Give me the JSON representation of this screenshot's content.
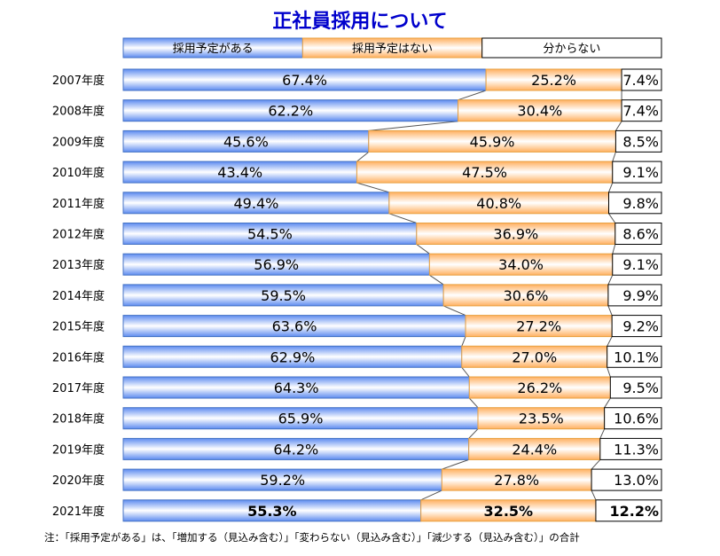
{
  "title": "正社員採用について",
  "note": "注：「採用予定がある」は、「増加する（見込み含む）」「変わらない（見込み含む）」「減少する（見込み含む）」の合計",
  "colors": {
    "series1": "#a9c4ff",
    "series2": "#ffcc99",
    "series3": "#ffffff",
    "connector": "#555555",
    "title": "#0000cc"
  },
  "chart_data": {
    "type": "bar",
    "orientation": "horizontal",
    "stacked": "100%",
    "legend_position": "top",
    "categories": [
      "2007年度",
      "2008年度",
      "2009年度",
      "2010年度",
      "2011年度",
      "2012年度",
      "2013年度",
      "2014年度",
      "2015年度",
      "2016年度",
      "2017年度",
      "2018年度",
      "2019年度",
      "2020年度",
      "2021年度"
    ],
    "series": [
      {
        "name": "採用予定がある",
        "values": [
          67.4,
          62.2,
          45.6,
          43.4,
          49.4,
          54.5,
          56.9,
          59.5,
          63.6,
          62.9,
          64.3,
          65.9,
          64.2,
          59.2,
          55.3
        ]
      },
      {
        "name": "採用予定はない",
        "values": [
          25.2,
          30.4,
          45.9,
          47.5,
          40.8,
          36.9,
          34.0,
          30.6,
          27.2,
          27.0,
          26.2,
          23.5,
          24.4,
          27.8,
          32.5
        ]
      },
      {
        "name": "分からない",
        "values": [
          7.4,
          7.4,
          8.5,
          9.1,
          9.8,
          8.6,
          9.1,
          9.9,
          9.2,
          10.1,
          9.5,
          10.6,
          11.3,
          13.0,
          12.2
        ]
      }
    ],
    "labels": [
      [
        "67.4%",
        "25.2%",
        "7.4%"
      ],
      [
        "62.2%",
        "30.4%",
        "7.4%"
      ],
      [
        "45.6%",
        "45.9%",
        "8.5%"
      ],
      [
        "43.4%",
        "47.5%",
        "9.1%"
      ],
      [
        "49.4%",
        "40.8%",
        "9.8%"
      ],
      [
        "54.5%",
        "36.9%",
        "8.6%"
      ],
      [
        "56.9%",
        "34.0%",
        "9.1%"
      ],
      [
        "59.5%",
        "30.6%",
        "9.9%"
      ],
      [
        "63.6%",
        "27.2%",
        "9.2%"
      ],
      [
        "62.9%",
        "27.0%",
        "10.1%"
      ],
      [
        "64.3%",
        "26.2%",
        "9.5%"
      ],
      [
        "65.9%",
        "23.5%",
        "10.6%"
      ],
      [
        "64.2%",
        "24.4%",
        "11.3%"
      ],
      [
        "59.2%",
        "27.8%",
        "13.0%"
      ],
      [
        "55.3%",
        "32.5%",
        "12.2%"
      ]
    ],
    "xlim": [
      0,
      100
    ]
  }
}
